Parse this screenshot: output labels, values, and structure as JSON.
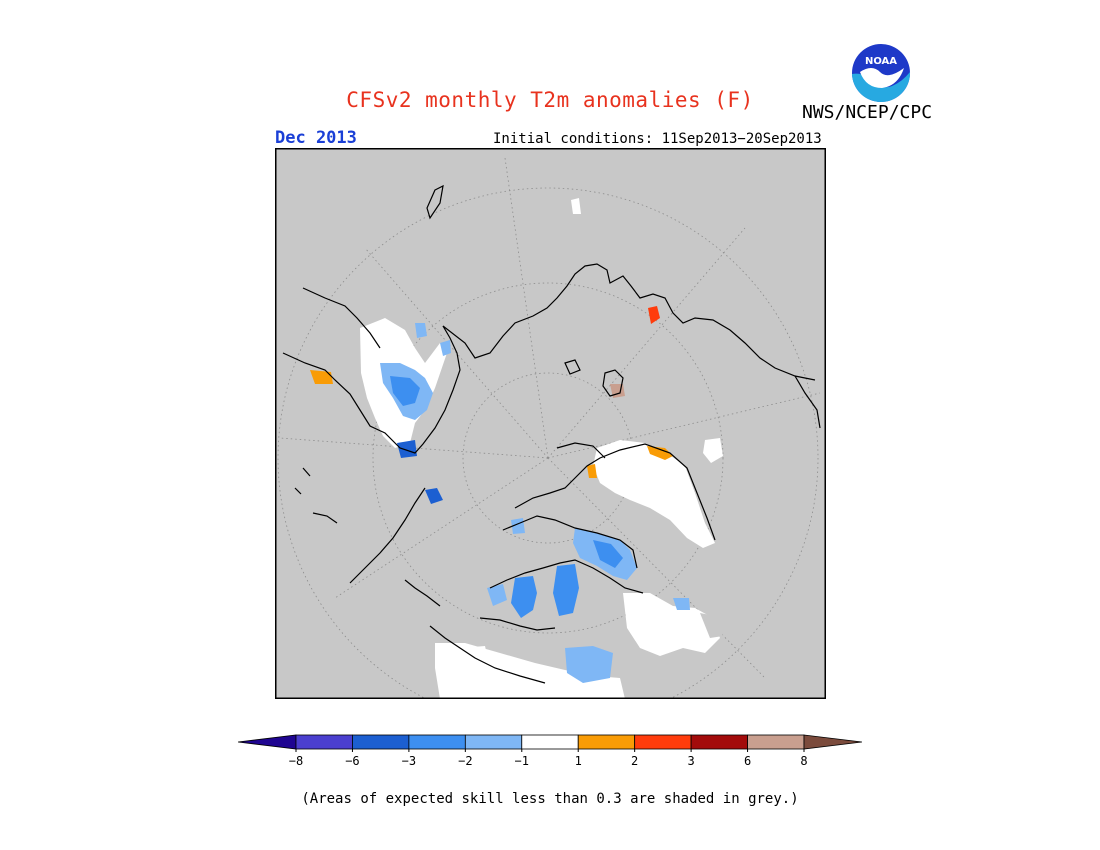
{
  "header": {
    "title": "CFSv2 monthly T2m anomalies (F)",
    "org": "NWS/NCEP/CPC",
    "month": "Dec 2013",
    "initial_conditions": "Initial conditions: 11Sep2013−20Sep2013",
    "logo_text": "NOAA"
  },
  "colors": {
    "title": "#e8321e",
    "month": "#1a3fd6",
    "ocean_grey": "#c8c8c8",
    "no_signal": "#ffffff"
  },
  "legend": {
    "bins": [
      {
        "color": "#1f0591"
      },
      {
        "color": "#4b3fcf"
      },
      {
        "color": "#1c5fd1"
      },
      {
        "color": "#3d8ff0"
      },
      {
        "color": "#7fb7f5"
      },
      {
        "color": "#ffffff"
      },
      {
        "color": "#f99c06"
      },
      {
        "color": "#ff3c0c"
      },
      {
        "color": "#a30b0b"
      },
      {
        "color": "#c99f8f"
      },
      {
        "color": "#7b4b3c"
      }
    ],
    "ticks": [
      "−8",
      "−6",
      "−3",
      "−2",
      "−1",
      "1",
      "2",
      "3",
      "6",
      "8"
    ]
  },
  "footnote": "(Areas of expected skill less than 0.3 are shaded in grey.)"
}
